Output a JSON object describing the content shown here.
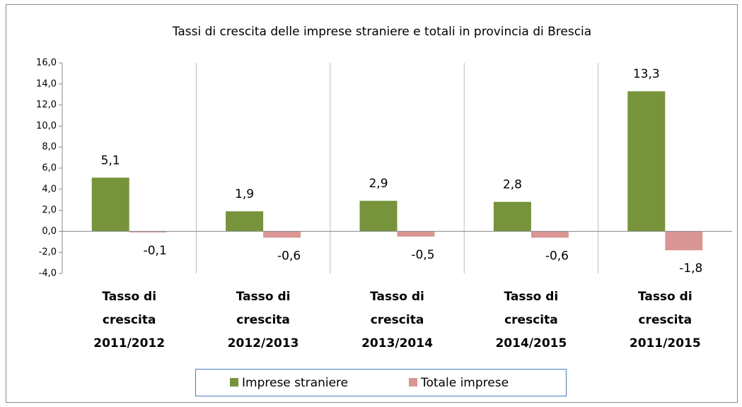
{
  "chart_data": {
    "type": "bar",
    "title": "Tassi di crescita delle imprese straniere e totali in provincia di Brescia",
    "categories": [
      [
        "Tasso di",
        "crescita",
        "2011/2012"
      ],
      [
        "Tasso di",
        "crescita",
        "2012/2013"
      ],
      [
        "Tasso di",
        "crescita",
        "2013/2014"
      ],
      [
        "Tasso di",
        "crescita",
        "2014/2015"
      ],
      [
        "Tasso di",
        "crescita",
        "2011/2015"
      ]
    ],
    "series": [
      {
        "name": "Imprese straniere",
        "color": "#77933c",
        "values": [
          5.1,
          1.9,
          2.9,
          2.8,
          13.3
        ],
        "value_labels": [
          "5,1",
          "1,9",
          "2,9",
          "2,8",
          "13,3"
        ]
      },
      {
        "name": "Totale imprese",
        "color": "#d99694",
        "values": [
          -0.1,
          -0.6,
          -0.5,
          -0.6,
          -1.8
        ],
        "value_labels": [
          "-0,1",
          "-0,6",
          "-0,5",
          "-0,6",
          "-1,8"
        ]
      }
    ],
    "ylim": [
      -4,
      16
    ],
    "yticks": [
      {
        "value": -4,
        "label": "-4,0"
      },
      {
        "value": -2,
        "label": "-2,0"
      },
      {
        "value": 0,
        "label": "0,0"
      },
      {
        "value": 2,
        "label": "2,0"
      },
      {
        "value": 4,
        "label": "4,0"
      },
      {
        "value": 6,
        "label": "6,0"
      },
      {
        "value": 8,
        "label": "8,0"
      },
      {
        "value": 10,
        "label": "10,0"
      },
      {
        "value": 12,
        "label": "12,0"
      },
      {
        "value": 14,
        "label": "14,0"
      },
      {
        "value": 16,
        "label": "16,0"
      }
    ],
    "legend": "bottom"
  }
}
